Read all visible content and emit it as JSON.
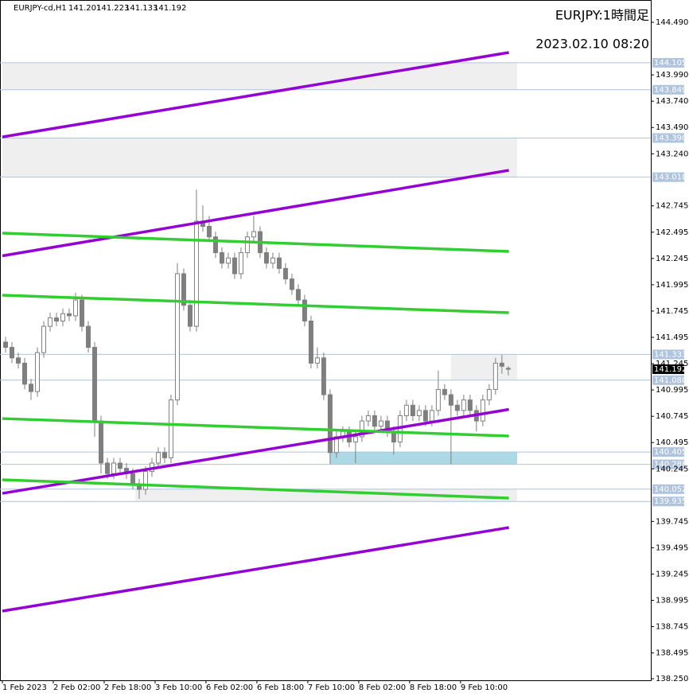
{
  "chart_data": {
    "type": "candlestick",
    "symbol": "EURJPY-cd,H1",
    "title": "EURJPY:1時間足",
    "subtitle": "2023.02.10 08:20",
    "xlim": [
      0,
      101.9
    ],
    "ylim": [
      138.235,
      144.702
    ],
    "xticks": [
      {
        "value": 0,
        "label": "1 Feb 2023"
      },
      {
        "value": 8,
        "label": "2 Feb 02:00"
      },
      {
        "value": 16,
        "label": "2 Feb 18:00"
      },
      {
        "value": 24,
        "label": "3 Feb 10:00"
      },
      {
        "value": 32,
        "label": "6 Feb 02:00"
      },
      {
        "value": 40,
        "label": "6 Feb 18:00"
      },
      {
        "value": 48,
        "label": "7 Feb 10:00"
      },
      {
        "value": 56,
        "label": "8 Feb 02:00"
      },
      {
        "value": 64,
        "label": "8 Feb 18:00"
      },
      {
        "value": 72,
        "label": "9 Feb 10:00"
      }
    ],
    "yticks": [
      {
        "value": 144.49,
        "label": "144.490"
      },
      {
        "value": 143.99,
        "label": "143.990"
      },
      {
        "value": 143.74,
        "label": "143.740"
      },
      {
        "value": 143.49,
        "label": "143.490"
      },
      {
        "value": 143.24,
        "label": "143.240"
      },
      142.745,
      142.495,
      142.245,
      141.995,
      141.745,
      141.495,
      141.245,
      140.995,
      140.745,
      140.495,
      140.245,
      139.745,
      139.495,
      139.245,
      138.995,
      138.745,
      138.495,
      {
        "value": 138.25,
        "label": "138.250"
      }
    ],
    "color": "#7f7f7f",
    "open": [
      141.45,
      141.4,
      141.3,
      141.25,
      141.05,
      140.98,
      141.35,
      141.6,
      141.68,
      141.65,
      141.72,
      141.7,
      141.85,
      141.6,
      141.4,
      140.7,
      140.3,
      140.2,
      140.3,
      140.25,
      140.2,
      140.1,
      140.05,
      140.22,
      140.3,
      140.4,
      140.35,
      140.9,
      142.1,
      141.8,
      141.6,
      142.6,
      142.55,
      142.45,
      142.3,
      142.2,
      142.25,
      142.1,
      142.3,
      142.45,
      142.5,
      142.3,
      142.2,
      142.25,
      142.15,
      142.05,
      141.95,
      141.85,
      141.65,
      141.25,
      141.3,
      140.95,
      140.4,
      140.55,
      140.6,
      140.5,
      140.55,
      140.7,
      140.75,
      140.65,
      140.7,
      140.6,
      140.5,
      140.75,
      140.85,
      140.75,
      140.8,
      140.7,
      140.8,
      141.0,
      140.95,
      140.85,
      140.8,
      140.9,
      140.8,
      140.7,
      140.9,
      141.0,
      141.25,
      141.201
    ],
    "high": [
      141.5,
      141.45,
      141.35,
      141.3,
      141.1,
      141.4,
      141.65,
      141.73,
      141.73,
      141.77,
      141.77,
      141.92,
      141.9,
      141.65,
      141.45,
      140.75,
      140.35,
      140.35,
      140.35,
      140.3,
      140.25,
      140.15,
      140.27,
      140.35,
      140.45,
      140.45,
      140.95,
      142.2,
      142.15,
      141.85,
      142.9,
      142.75,
      142.65,
      142.5,
      142.35,
      142.3,
      142.3,
      142.35,
      142.5,
      142.65,
      142.55,
      142.35,
      142.3,
      142.3,
      142.2,
      142.1,
      142.0,
      141.9,
      141.7,
      141.4,
      141.35,
      141.0,
      140.6,
      140.65,
      140.65,
      140.6,
      140.75,
      140.8,
      140.8,
      140.75,
      140.75,
      140.65,
      140.8,
      140.9,
      140.9,
      140.85,
      140.85,
      140.85,
      141.18,
      141.05,
      141.0,
      140.9,
      140.95,
      140.95,
      140.85,
      140.95,
      141.05,
      141.3,
      141.33,
      141.223
    ],
    "low": [
      141.35,
      141.25,
      141.2,
      141.0,
      140.9,
      140.93,
      141.3,
      141.55,
      141.6,
      141.6,
      141.65,
      141.65,
      141.55,
      141.35,
      140.55,
      140.2,
      140.15,
      140.15,
      140.2,
      140.15,
      140.05,
      139.96,
      140.0,
      140.17,
      140.25,
      140.3,
      140.3,
      140.85,
      141.75,
      141.55,
      141.55,
      142.5,
      142.4,
      142.25,
      142.15,
      142.15,
      142.05,
      142.05,
      142.25,
      142.4,
      142.25,
      142.15,
      142.15,
      142.1,
      142.0,
      141.9,
      141.8,
      141.6,
      141.2,
      141.2,
      140.9,
      140.29,
      140.35,
      140.5,
      140.45,
      140.3,
      140.5,
      140.65,
      140.6,
      140.6,
      140.55,
      140.38,
      140.45,
      140.7,
      140.7,
      140.7,
      140.65,
      140.65,
      140.75,
      140.9,
      140.29,
      140.75,
      140.75,
      140.75,
      140.6,
      140.65,
      140.85,
      140.95,
      141.15,
      141.133
    ],
    "close": [
      141.4,
      141.3,
      141.25,
      141.05,
      140.98,
      141.35,
      141.6,
      141.68,
      141.65,
      141.72,
      141.7,
      141.85,
      141.6,
      141.4,
      140.7,
      140.3,
      140.2,
      140.3,
      140.25,
      140.2,
      140.1,
      140.05,
      140.22,
      140.3,
      140.4,
      140.35,
      140.9,
      142.1,
      141.8,
      141.6,
      142.6,
      142.55,
      142.45,
      142.3,
      142.2,
      142.25,
      142.1,
      142.3,
      142.45,
      142.5,
      142.3,
      142.2,
      142.25,
      142.15,
      142.05,
      141.95,
      141.85,
      141.65,
      141.25,
      141.3,
      140.95,
      140.4,
      140.55,
      140.6,
      140.5,
      140.55,
      140.7,
      140.75,
      140.65,
      140.7,
      140.6,
      140.5,
      140.75,
      140.85,
      140.75,
      140.8,
      140.7,
      140.8,
      141.0,
      140.95,
      140.85,
      140.8,
      140.9,
      140.8,
      140.7,
      140.9,
      141.0,
      141.25,
      141.22,
      141.192
    ],
    "levels": [
      144.105,
      143.849,
      {
        "value": 143.39,
        "label": "143.390"
      },
      143.018,
      141.333,
      141.088,
      140.405,
      140.288,
      140.052,
      139.935
    ],
    "zones": [
      {
        "x": [
          0,
          80.9
        ],
        "range": [
          144.105,
          143.849
        ],
        "color": "#efefef"
      },
      {
        "x": [
          0,
          80.9
        ],
        "range": [
          143.39,
          143.018
        ],
        "color": "#efefef"
      },
      {
        "x": [
          70.5,
          80.9
        ],
        "range": [
          141.333,
          141.088
        ],
        "color": "#efefef"
      },
      {
        "x": [
          51.5,
          80.9
        ],
        "range": [
          140.405,
          140.288
        ],
        "color": "#add8e6"
      },
      {
        "x": [
          20.9,
          80.9
        ],
        "range": [
          140.052,
          139.935
        ],
        "color": "#efefef"
      }
    ],
    "trendlines": [
      {
        "x": [
          0,
          79.6
        ],
        "y": [
          143.4,
          144.203
        ],
        "color": "#9400d3"
      },
      {
        "x": [
          0,
          79.6
        ],
        "y": [
          142.27,
          143.083
        ],
        "color": "#9400d3"
      },
      {
        "x": [
          0,
          79.6
        ],
        "y": [
          140.012,
          140.81
        ],
        "color": "#9400d3"
      },
      {
        "x": [
          0,
          79.6
        ],
        "y": [
          138.893,
          139.687
        ],
        "color": "#9400d3"
      },
      {
        "x": [
          0,
          79.6
        ],
        "y": [
          142.486,
          142.312
        ],
        "color": "#32cd32"
      },
      {
        "x": [
          0,
          79.6
        ],
        "y": [
          141.896,
          141.729
        ],
        "color": "#32cd32"
      },
      {
        "x": [
          0,
          79.6
        ],
        "y": [
          140.723,
          140.557
        ],
        "color": "#32cd32"
      },
      {
        "x": [
          0,
          79.6
        ],
        "y": [
          140.141,
          139.967
        ],
        "color": "#32cd32"
      }
    ]
  }
}
